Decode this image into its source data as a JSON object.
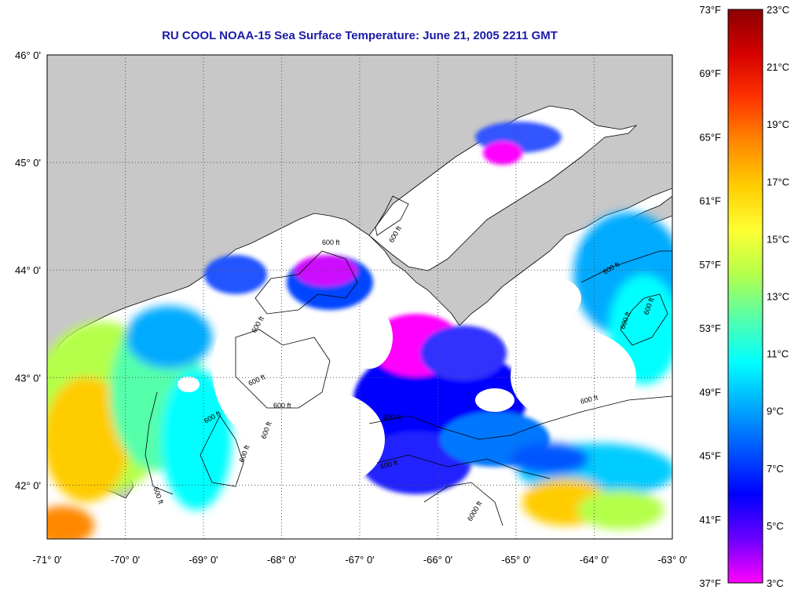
{
  "title": "RU COOL  NOAA-15  Sea Surface Temperature:  June 21, 2005 2211 GMT",
  "colors": {
    "land": "#c8c8c8",
    "cloud": "#ffffff",
    "grid": "#555555"
  },
  "map": {
    "lon_range": [
      -71,
      -63
    ],
    "lat_range": [
      41.5,
      46.0
    ],
    "lon_ticks": [
      "-71° 0'",
      "-70° 0'",
      "-69° 0'",
      "-68° 0'",
      "-67° 0'",
      "-66° 0'",
      "-65° 0'",
      "-64° 0'",
      "-63° 0'"
    ],
    "lat_ticks": [
      "46° 0'",
      "45° 0'",
      "44° 0'",
      "43° 0'",
      "42° 0'"
    ],
    "contour_label": "600 ft",
    "contour_label_deep": "6000 ft"
  },
  "colorbar": {
    "fahrenheit": [
      "73°F",
      "69°F",
      "65°F",
      "61°F",
      "57°F",
      "53°F",
      "49°F",
      "45°F",
      "41°F",
      "37°F"
    ],
    "celsius": [
      "23°C",
      "21°C",
      "19°C",
      "17°C",
      "15°C",
      "13°C",
      "11°C",
      "9°C",
      "7°C",
      "5°C",
      "3°C"
    ],
    "gradient": [
      "#8b0000",
      "#d40000",
      "#ff3300",
      "#ff8800",
      "#ffcc00",
      "#ffff33",
      "#b4ff4a",
      "#55ffaa",
      "#00ffff",
      "#00aaff",
      "#0055ff",
      "#0000ff",
      "#6a00ff",
      "#ff00ff"
    ]
  }
}
